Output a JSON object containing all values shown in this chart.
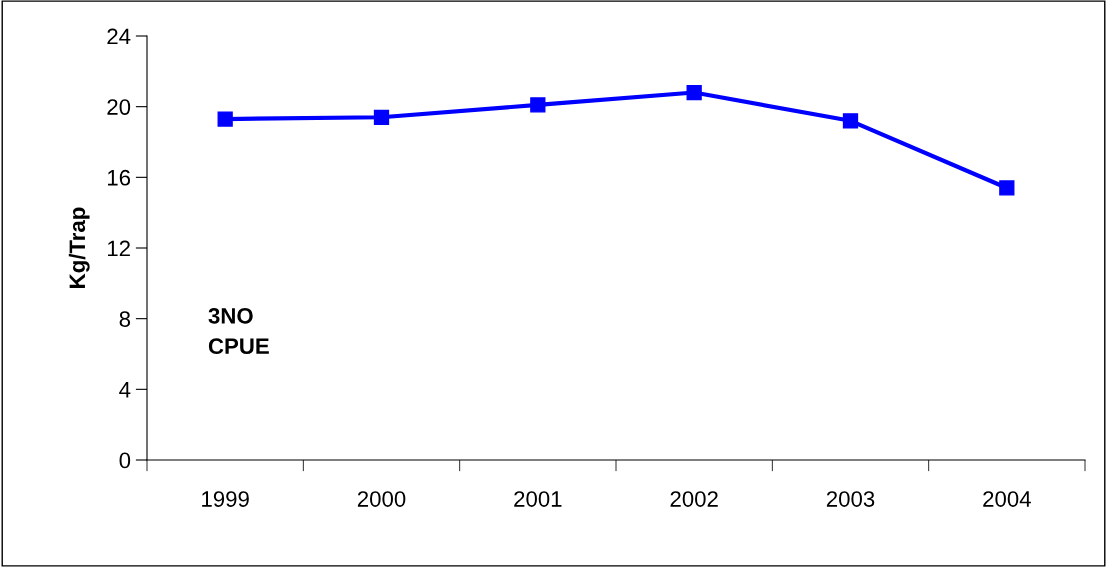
{
  "chart_data": {
    "type": "line",
    "ylabel": "Kg/Trap",
    "categories": [
      "1999",
      "2000",
      "2001",
      "2002",
      "2003",
      "2004"
    ],
    "series": [
      {
        "color": "#0000ff",
        "values": [
          19.3,
          19.4,
          20.1,
          20.8,
          19.2,
          15.4
        ]
      }
    ],
    "ylim": [
      0,
      24
    ],
    "yticks": [
      0,
      4,
      8,
      12,
      16,
      20,
      24
    ],
    "marker": "square",
    "line_style": "solid",
    "grid": false,
    "legend": false,
    "annotations": [
      "3NO\nCPUE"
    ]
  }
}
